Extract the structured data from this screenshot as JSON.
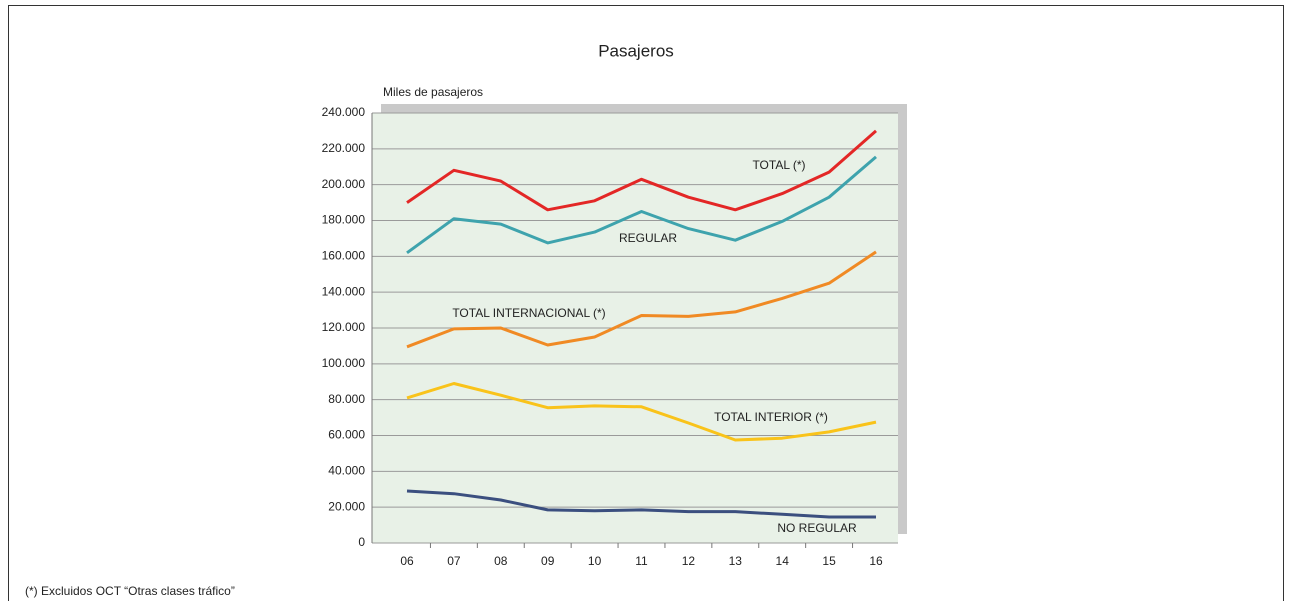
{
  "chart_data": {
    "type": "line",
    "title": "Pasajeros",
    "y_label": "Miles de pasajeros",
    "footnote": "(*) Excluidos OCT “Otras clases tráfico”",
    "categories": [
      "06",
      "07",
      "08",
      "09",
      "10",
      "11",
      "12",
      "13",
      "14",
      "15",
      "16"
    ],
    "ylim": [
      0,
      240000
    ],
    "yticks": [
      0,
      {
        "value": 20000,
        "label": "20.000"
      },
      {
        "value": 40000,
        "label": "40.000"
      },
      {
        "value": 60000,
        "label": "60.000"
      },
      {
        "value": 80000,
        "label": "80.000"
      },
      {
        "value": 100000,
        "label": "100.000"
      },
      {
        "value": 120000,
        "label": "120.000"
      },
      {
        "value": 140000,
        "label": "140.000"
      },
      {
        "value": 160000,
        "label": "160.000"
      },
      {
        "value": 180000,
        "label": "180.000"
      },
      {
        "value": 200000,
        "label": "200.000"
      },
      {
        "value": 220000,
        "label": "220.000"
      },
      {
        "value": 240000,
        "label": "240.000"
      }
    ],
    "grid": true,
    "series": [
      {
        "name": "TOTAL (*)",
        "color": "#e32726",
        "values": [
          190000,
          208000,
          202000,
          186000,
          191000,
          203000,
          193000,
          186000,
          195000,
          207000,
          230000
        ]
      },
      {
        "name": "REGULAR",
        "color": "#3ea3ad",
        "values": [
          162000,
          181000,
          178000,
          167500,
          173500,
          185000,
          175500,
          169000,
          179500,
          193000,
          215500
        ]
      },
      {
        "name": "TOTAL INTERNACIONAL (*)",
        "color": "#f08a24",
        "values": [
          109500,
          119500,
          120000,
          110500,
          115000,
          127000,
          126500,
          129000,
          136500,
          145000,
          162500
        ]
      },
      {
        "name": "TOTAL INTERIOR (*)",
        "color": "#f9c31a",
        "values": [
          81000,
          89000,
          82500,
          75500,
          76500,
          76000,
          67000,
          57500,
          58500,
          62000,
          67500
        ]
      },
      {
        "name": "NO REGULAR",
        "color": "#3b4f7f",
        "values": [
          29000,
          27500,
          24000,
          18500,
          18000,
          18500,
          17500,
          17500,
          16000,
          14500,
          14500
        ]
      }
    ]
  }
}
